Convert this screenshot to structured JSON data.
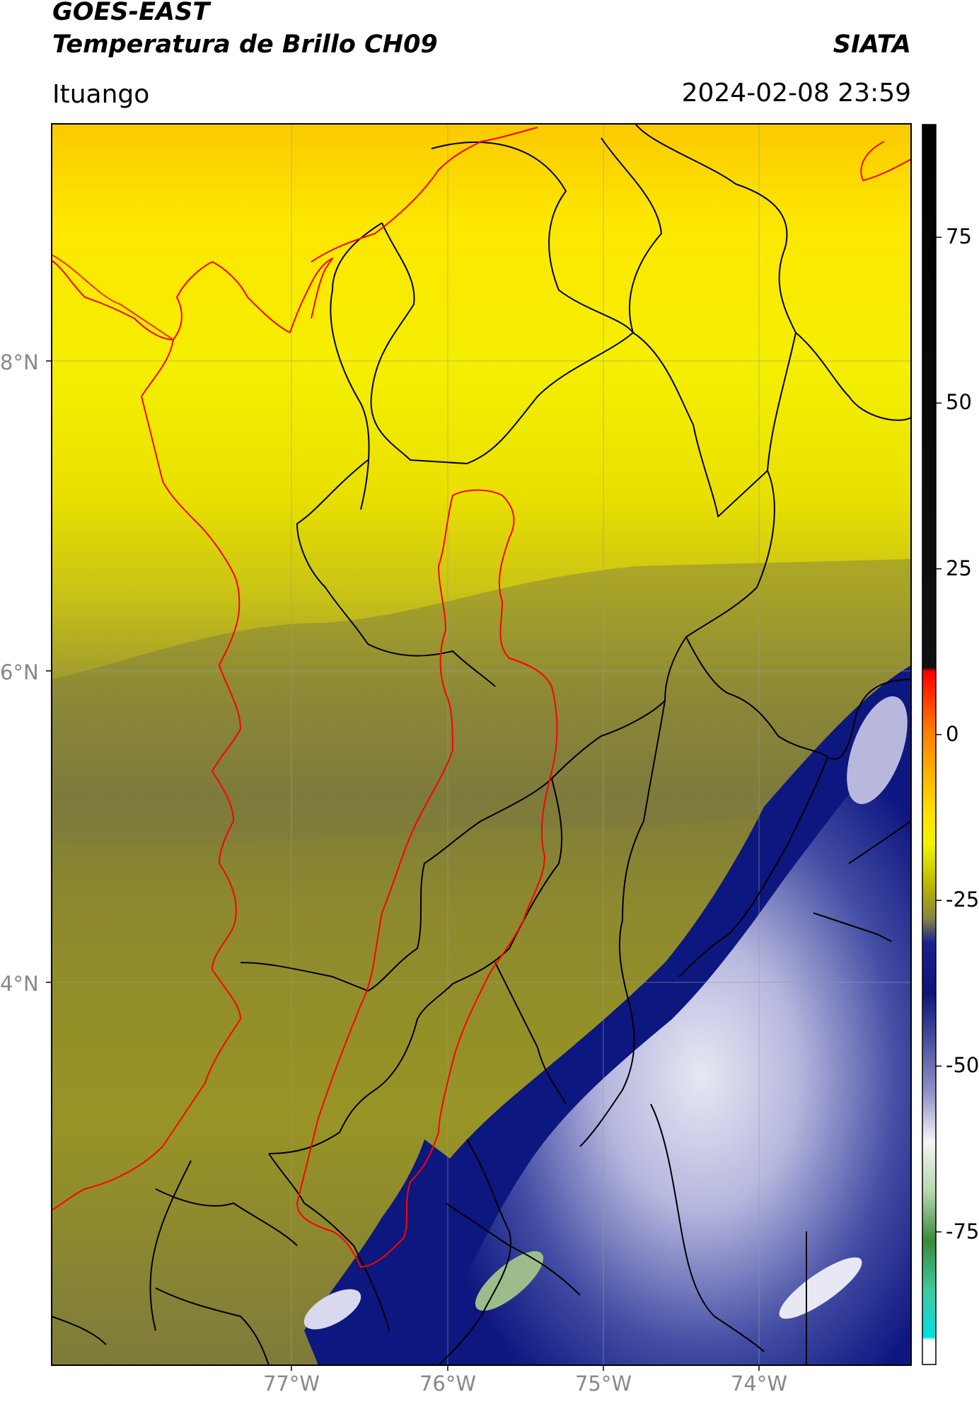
{
  "header": {
    "satellite": "GOES-EAST",
    "product": "Temperatura de Brillo CH09",
    "brand": "SIATA",
    "location": "Ituango",
    "datetime": "2024-02-08 23:59"
  },
  "map": {
    "lat_ticks": [
      {
        "value": 8,
        "label": "8°N"
      },
      {
        "value": 6,
        "label": "6°N"
      },
      {
        "value": 4,
        "label": "4°N"
      }
    ],
    "lon_ticks": [
      {
        "value": -77,
        "label": "77°W"
      },
      {
        "value": -76,
        "label": "76°W"
      },
      {
        "value": -75,
        "label": "75°W"
      },
      {
        "value": -74,
        "label": "74°W"
      }
    ],
    "colors": {
      "warm": "#f7ee00",
      "olive": "#8f8a2c",
      "cold_blue": "#0d1780",
      "border": "#000000",
      "highlight": "#ff0000"
    }
  },
  "colorbar": {
    "range": [
      -95,
      92
    ],
    "ticks": [
      {
        "value": 75,
        "label": "75"
      },
      {
        "value": 50,
        "label": "50"
      },
      {
        "value": 25,
        "label": "25"
      },
      {
        "value": 0,
        "label": "0"
      },
      {
        "value": -25,
        "label": "-25"
      },
      {
        "value": -50,
        "label": "-50"
      },
      {
        "value": -75,
        "label": "-75"
      }
    ]
  }
}
